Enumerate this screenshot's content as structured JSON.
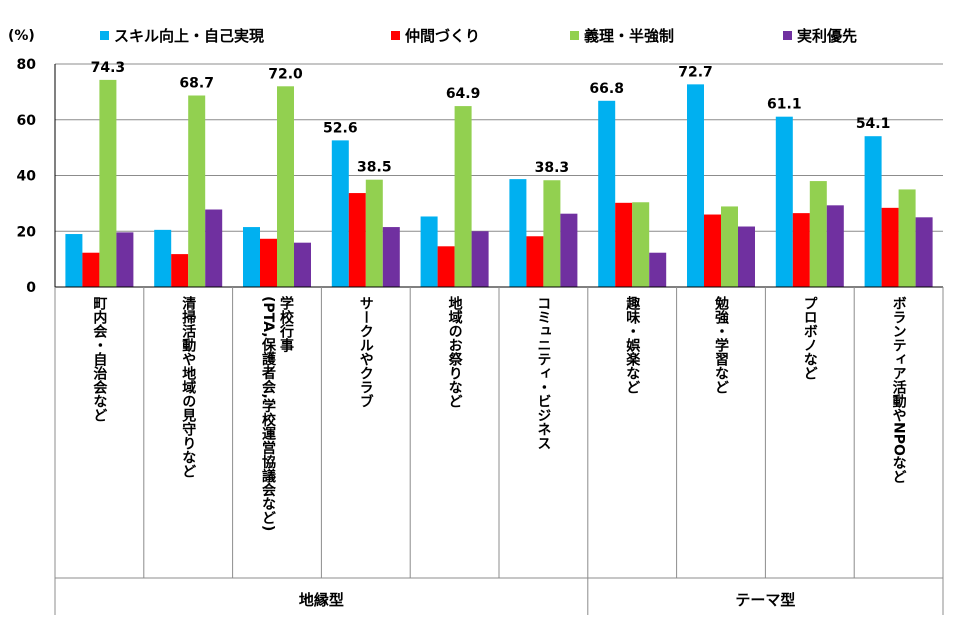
{
  "chart_data": {
    "type": "bar",
    "y_unit_label": "(%)",
    "ylim": [
      0,
      80
    ],
    "yticks": [
      0,
      20,
      40,
      60,
      80
    ],
    "grid": true,
    "legend_position": "top",
    "categories": [
      "町内会・自治会など",
      "清掃活動や地域の見守りなど",
      "学校行事(PTA,保護者会,学校運営協議会など)",
      "サークルやクラブ",
      "地域のお祭りなど",
      "コミュニティ・ビジネス",
      "趣味・娯楽など",
      "勉強・学習など",
      "プロボノなど",
      "ボランティア活動やNPOなど"
    ],
    "category_lines": [
      [
        "町内会・自治会など"
      ],
      [
        "清掃活動や地域の見守りなど"
      ],
      [
        "学校行事",
        "(PTA,保護者会,学校運営協議会など)"
      ],
      [
        "サークルやクラブ"
      ],
      [
        "地域のお祭りなど"
      ],
      [
        "コミュニティ・ビジネス"
      ],
      [
        "趣味・娯楽など"
      ],
      [
        "勉強・学習など"
      ],
      [
        "プロボノなど"
      ],
      [
        "ボランティア活動やNPOなど"
      ]
    ],
    "groups": [
      {
        "name": "地縁型",
        "count": 6
      },
      {
        "name": "テーマ型",
        "count": 4
      }
    ],
    "series": [
      {
        "name": "スキル向上・自己実現",
        "color": "#00B0F0",
        "values": [
          19.0,
          20.5,
          21.5,
          52.6,
          25.3,
          38.7,
          66.8,
          72.7,
          61.1,
          54.1
        ]
      },
      {
        "name": "仲間づくり",
        "color": "#FF0000",
        "values": [
          12.3,
          11.8,
          17.3,
          33.7,
          14.6,
          18.2,
          30.2,
          26.0,
          26.5,
          28.4
        ]
      },
      {
        "name": "義理・半強制",
        "color": "#92D050",
        "values": [
          74.3,
          68.7,
          72.0,
          38.5,
          64.9,
          38.3,
          30.4,
          28.9,
          38.0,
          35.0
        ]
      },
      {
        "name": "実利優先",
        "color": "#7030A0",
        "values": [
          19.6,
          27.8,
          15.9,
          21.5,
          20.0,
          26.3,
          12.3,
          21.7,
          29.3,
          25.0
        ]
      }
    ],
    "data_labels": [
      {
        "category": 0,
        "series": 2,
        "text": "74.3"
      },
      {
        "category": 1,
        "series": 2,
        "text": "68.7"
      },
      {
        "category": 2,
        "series": 2,
        "text": "72.0"
      },
      {
        "category": 3,
        "series": 0,
        "text": "52.6"
      },
      {
        "category": 3,
        "series": 2,
        "text": "38.5"
      },
      {
        "category": 4,
        "series": 2,
        "text": "64.9"
      },
      {
        "category": 5,
        "series": 2,
        "text": "38.3"
      },
      {
        "category": 6,
        "series": 0,
        "text": "66.8"
      },
      {
        "category": 7,
        "series": 0,
        "text": "72.7"
      },
      {
        "category": 8,
        "series": 0,
        "text": "61.1"
      },
      {
        "category": 9,
        "series": 0,
        "text": "54.1"
      }
    ]
  }
}
